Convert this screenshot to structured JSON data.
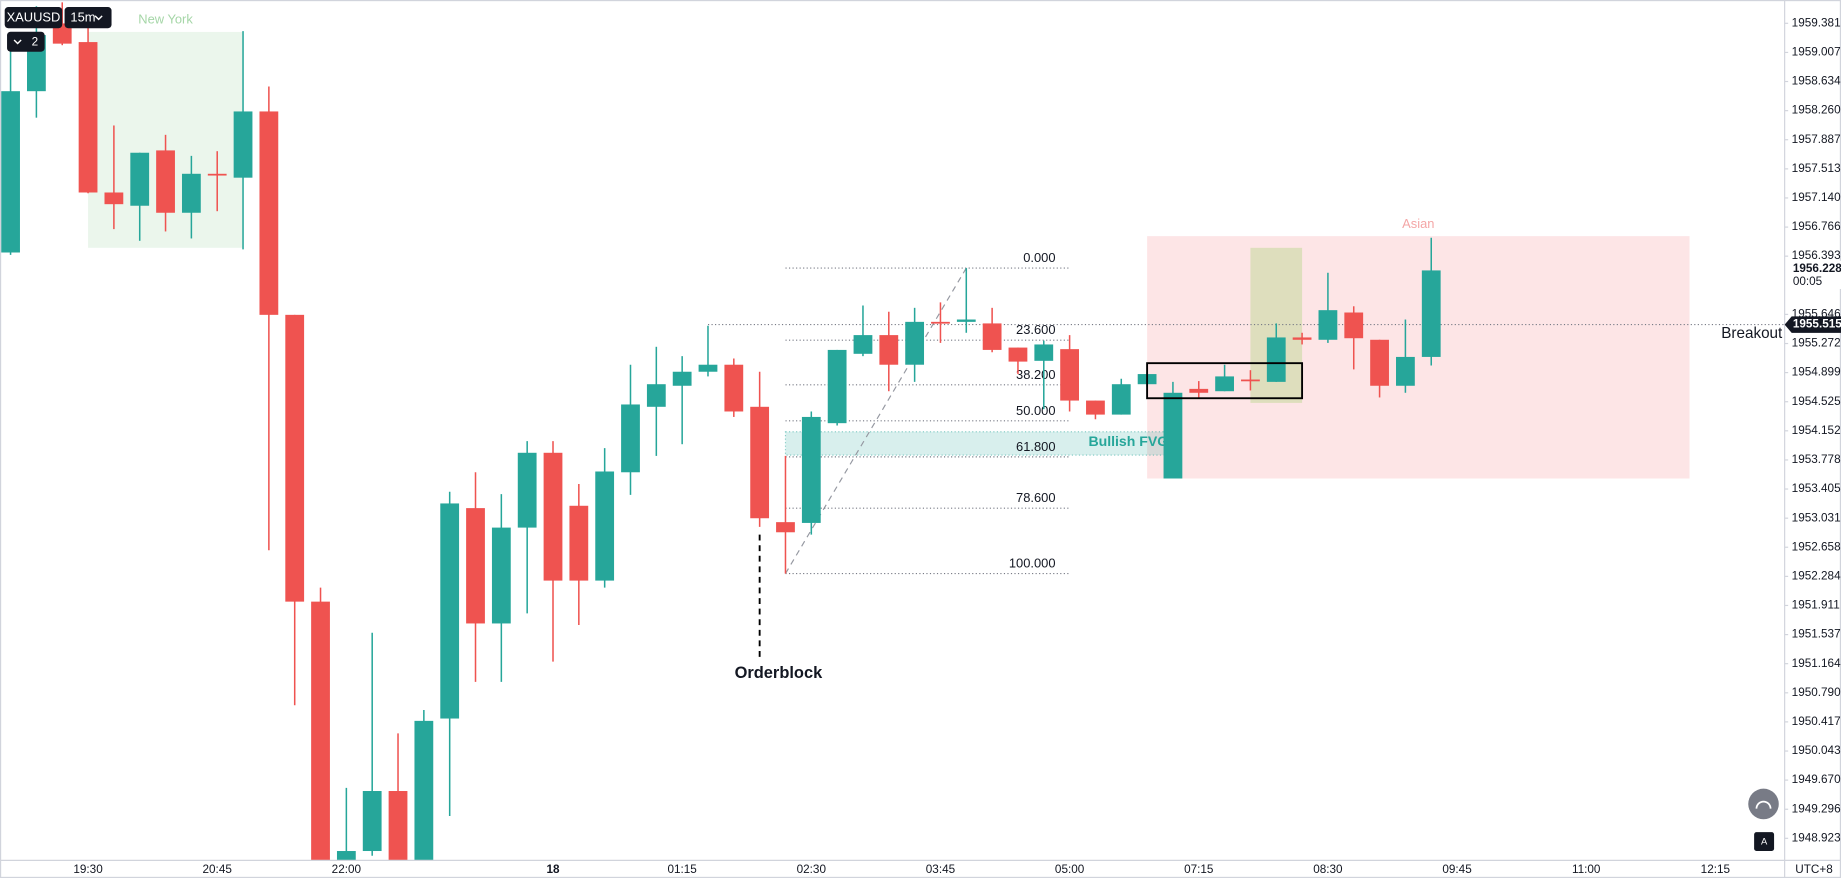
{
  "chart_data": {
    "type": "candlestick",
    "symbol": "XAUUSD",
    "interval": "15m",
    "hidden_count": 2,
    "timezone": "UTC+8",
    "up_color": "#26a69a",
    "down_color": "#ef5350",
    "grid": false,
    "categories": [
      null,
      null,
      null,
      "19:30",
      null,
      null,
      null,
      null,
      "20:45",
      null,
      null,
      null,
      null,
      "22:00",
      null,
      null,
      null,
      null,
      null,
      null,
      null,
      "18",
      null,
      null,
      null,
      null,
      "01:15",
      null,
      null,
      null,
      null,
      "02:30",
      null,
      null,
      null,
      null,
      "03:45",
      null,
      null,
      null,
      null,
      "05:00",
      null,
      null,
      null,
      null,
      "07:15",
      null,
      null,
      null,
      null,
      "08:30",
      null,
      null,
      null,
      null,
      "09:45",
      null,
      null,
      null,
      null,
      "11:00",
      null,
      null,
      null,
      null,
      "12:15"
    ],
    "open": [
      1956.44,
      1958.51,
      1959.38,
      1959.14,
      1957.21,
      1957.04,
      1957.75,
      1956.95,
      1957.45,
      1957.4,
      1958.25,
      1955.64,
      1951.96,
      1948.64,
      1948.76,
      1949.53,
      1948.64,
      1950.46,
      1953.16,
      1951.68,
      1952.91,
      1953.87,
      1953.19,
      1952.23,
      1953.62,
      1954.46,
      1954.73,
      1954.91,
      1955.0,
      1954.46,
      1952.98,
      1952.97,
      1954.25,
      1955.14,
      1955.38,
      1955.0,
      1955.55,
      1955.55,
      1955.53,
      1955.22,
      1955.05,
      1955.2,
      1954.54,
      1954.36,
      1954.75,
      1953.54,
      1954.69,
      1954.66,
      1954.81,
      1954.78,
      1955.35,
      1955.32,
      1955.67,
      1955.32,
      1954.73,
      1955.1,
      null,
      null,
      null,
      null,
      null,
      null,
      null,
      null,
      null,
      null,
      null
    ],
    "high": [
      1959.08,
      1959.6,
      1959.65,
      1959.4,
      1958.07,
      1957.72,
      1957.95,
      1957.68,
      1957.74,
      1959.28,
      1958.57,
      1955.64,
      1952.14,
      1949.57,
      1951.56,
      1950.27,
      1950.57,
      1953.37,
      1953.62,
      1953.34,
      1954.02,
      1954.02,
      1953.47,
      1953.93,
      1955.0,
      1955.23,
      1955.11,
      1955.5,
      1955.08,
      1954.91,
      1953.83,
      1954.4,
      1955.19,
      1955.76,
      1955.68,
      1955.73,
      1955.8,
      1956.24,
      1955.73,
      1955.22,
      1955.31,
      1955.38,
      1954.54,
      1954.82,
      1954.9,
      1954.78,
      1954.79,
      1955.0,
      1954.93,
      1955.53,
      1955.41,
      1956.18,
      1955.75,
      1955.32,
      1955.58,
      1956.63,
      null,
      null,
      null,
      null,
      null,
      null,
      null,
      null,
      null,
      null,
      null
    ],
    "low": [
      1956.41,
      1958.17,
      1959.1,
      1957.2,
      1956.74,
      1956.59,
      1956.71,
      1956.62,
      1956.97,
      1956.48,
      1952.62,
      1950.63,
      1948.55,
      1948.55,
      1948.7,
      1948.55,
      1948.55,
      1949.21,
      1950.93,
      1950.93,
      1951.81,
      1951.19,
      1951.66,
      1952.14,
      1953.33,
      1953.83,
      1953.98,
      1954.85,
      1954.33,
      1952.92,
      1952.32,
      1952.82,
      1954.22,
      1955.11,
      1954.66,
      1954.78,
      1955.28,
      1955.41,
      1955.16,
      1954.88,
      1954.43,
      1954.4,
      1954.3,
      1954.36,
      1954.72,
      1953.54,
      1954.58,
      1954.66,
      1954.67,
      1954.78,
      1955.26,
      1955.28,
      1954.94,
      1954.58,
      1954.64,
      1954.99,
      null,
      null,
      null,
      null,
      null,
      null,
      null,
      null,
      null,
      null,
      null
    ],
    "close": [
      1958.51,
      1959.23,
      1959.12,
      1957.21,
      1957.06,
      1957.72,
      1956.95,
      1957.45,
      1957.44,
      1958.25,
      1955.64,
      1951.96,
      1948.6,
      1948.76,
      1949.53,
      1948.64,
      1950.43,
      1953.22,
      1951.68,
      1952.91,
      1953.87,
      1952.23,
      1952.23,
      1953.63,
      1954.49,
      1954.75,
      1954.91,
      1955.0,
      1954.4,
      1953.03,
      1952.85,
      1954.33,
      1955.19,
      1955.38,
      1955.0,
      1955.55,
      1955.53,
      1955.58,
      1955.19,
      1955.04,
      1955.26,
      1954.54,
      1954.36,
      1954.75,
      1954.88,
      1954.64,
      1954.64,
      1954.85,
      1954.8,
      1955.35,
      1955.32,
      1955.7,
      1955.34,
      1954.73,
      1955.1,
      1956.21,
      null,
      null,
      null,
      null,
      null,
      null,
      null,
      null,
      null,
      null,
      null
    ],
    "ylim": [
      1948.64,
      1959.68
    ],
    "yticks": [
      1959.381,
      1959.007,
      1958.634,
      {
        "value": 1958.26,
        "label": "1958.260"
      },
      1957.887,
      1957.513,
      {
        "value": 1957.14,
        "label": "1957.140"
      },
      1956.766,
      1956.393,
      1955.646,
      1955.272,
      1954.899,
      1954.525,
      1954.152,
      1953.778,
      1953.405,
      1953.031,
      1952.658,
      1952.284,
      1951.911,
      1951.537,
      1951.164,
      {
        "value": 1950.79,
        "label": "1950.790"
      },
      1950.417,
      1950.043,
      {
        "value": 1949.67,
        "label": "1949.670"
      },
      1949.296,
      1948.923
    ],
    "last_price": {
      "value": 1956.228,
      "countdown": "00:05"
    },
    "sessions": [
      {
        "label": "New York",
        "x_range": [
          3,
          9
        ],
        "price_range": [
          1956.5,
          1959.27
        ],
        "color": "#e8f5e9",
        "label_color": "#a5d6a7"
      },
      {
        "label": "Asian",
        "x_range": [
          44,
          65
        ],
        "price_range": [
          1953.54,
          1956.65
        ],
        "color": "#fde0e2",
        "label_color": "#f4a6a6"
      }
    ],
    "fvg": {
      "label": "Bullish FVG",
      "x_range": [
        30,
        45
      ],
      "price_range": [
        1953.84,
        1954.14
      ],
      "color": "#26a69a"
    },
    "fibonacci": {
      "start": {
        "x": 30,
        "price": 1952.32
      },
      "end": {
        "x": 37,
        "price": 1956.24
      },
      "x_end": 41,
      "levels": [
        {
          "value": 0,
          "label": "0.000"
        },
        {
          "value": 23.6,
          "label": "23.600"
        },
        {
          "value": 38.2,
          "label": "38.200"
        },
        {
          "value": 50,
          "label": "50.000"
        },
        {
          "value": 61.8,
          "label": "61.800"
        },
        {
          "value": 78.6,
          "label": "78.600"
        },
        {
          "value": 100,
          "label": "100.000"
        }
      ]
    },
    "orderblock": {
      "label": "Orderblock",
      "x": 29,
      "price_range": [
        1951.23,
        1952.82
      ]
    },
    "range_box": {
      "x_range": [
        44,
        50
      ],
      "price_range": [
        1954.57,
        1955.02
      ]
    },
    "highlight_box": {
      "x_range": [
        48,
        50
      ],
      "price_range": [
        1954.51,
        1956.5
      ],
      "color": "#c5d89a"
    },
    "breakout": {
      "label": "Breakout",
      "price": 1955.515,
      "x_start": 27
    }
  }
}
